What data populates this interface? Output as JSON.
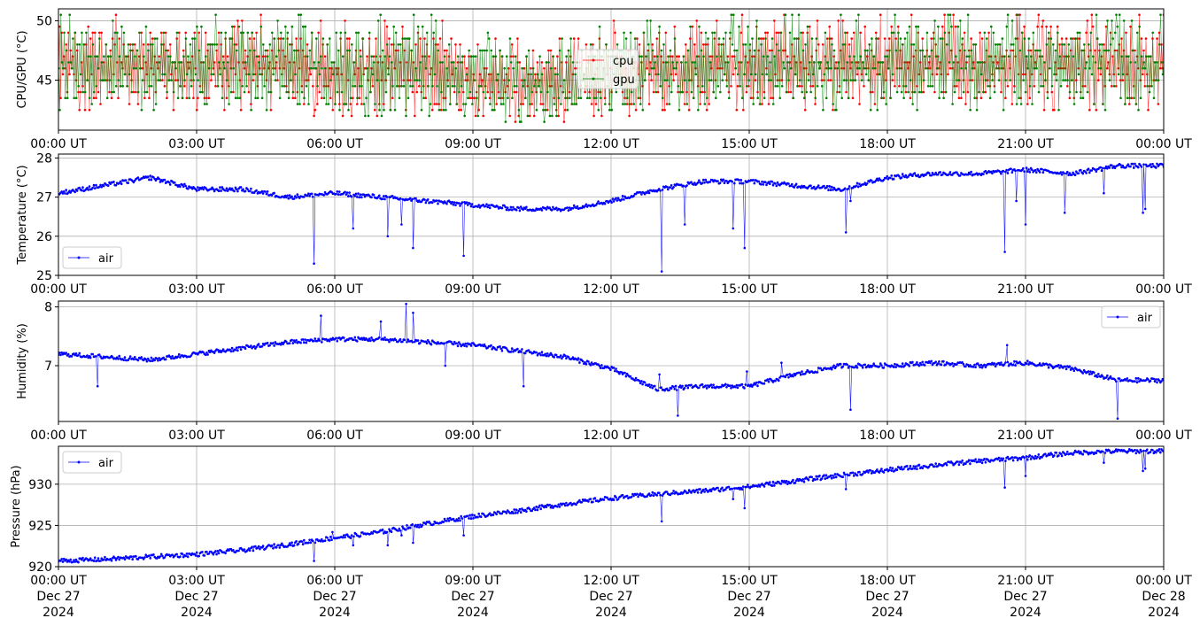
{
  "x_ticks": [
    "00:00 UT",
    "03:00 UT",
    "06:00 UT",
    "09:00 UT",
    "12:00 UT",
    "15:00 UT",
    "18:00 UT",
    "21:00 UT",
    "00:00 UT"
  ],
  "x_dates": [
    "Dec 27",
    "Dec 27",
    "Dec 27",
    "Dec 27",
    "Dec 27",
    "Dec 27",
    "Dec 27",
    "Dec 27",
    "Dec 28"
  ],
  "x_years": [
    "2024",
    "2024",
    "2024",
    "2024",
    "2024",
    "2024",
    "2024",
    "2024",
    "2024"
  ],
  "chart_data": [
    {
      "type": "line",
      "ylabel": "CPU/GPU (°C)",
      "x_range": [
        "2024-12-27 00:00",
        "2024-12-28 00:00"
      ],
      "ylim": [
        40.8,
        51.0
      ],
      "y_ticks": [
        45,
        50
      ],
      "grid": true,
      "legend_position": "center",
      "series": [
        {
          "name": "cpu",
          "color": "#ff0000",
          "x_hours": [
            0,
            1,
            2,
            3,
            4,
            5,
            6,
            7,
            8,
            9,
            10,
            11,
            12,
            13,
            14,
            15,
            16,
            17,
            18,
            19,
            20,
            21,
            22,
            23,
            24
          ],
          "y_low": [
            43,
            43,
            43,
            43,
            43,
            43,
            42.5,
            42.5,
            42.5,
            42.5,
            42,
            42,
            42.5,
            43,
            43,
            43,
            43,
            43,
            43,
            43,
            43,
            43,
            43,
            43,
            43
          ],
          "y_high": [
            49.5,
            49.5,
            49.5,
            49.5,
            49.5,
            49.5,
            49.5,
            49.5,
            49.5,
            48,
            47.5,
            47.5,
            49,
            49.5,
            49.5,
            49.5,
            49.5,
            49.5,
            49.5,
            49.5,
            49.5,
            49.5,
            49.5,
            49.5,
            49.5
          ]
        },
        {
          "name": "gpu",
          "color": "#008000",
          "x_hours": [
            0,
            1,
            2,
            3,
            4,
            5,
            6,
            7,
            8,
            9,
            10,
            11,
            12,
            13,
            14,
            15,
            16,
            17,
            18,
            19,
            20,
            21,
            22,
            23,
            24
          ],
          "y_low": [
            43,
            43,
            43,
            43,
            43,
            43,
            42.5,
            42.5,
            42.5,
            42.5,
            42,
            42,
            42.5,
            43,
            43,
            43,
            43,
            43,
            43,
            43,
            43,
            43,
            43,
            43,
            43
          ],
          "y_high": [
            49.5,
            49.5,
            49.5,
            49.5,
            49.5,
            49.5,
            49.5,
            49.5,
            49.5,
            48,
            47.5,
            47.5,
            49,
            49.5,
            49.5,
            49.5,
            49.5,
            49.5,
            49.5,
            49.5,
            49.5,
            49.5,
            49.5,
            49.5,
            49.5
          ]
        }
      ]
    },
    {
      "type": "line",
      "ylabel": "Temperature (°C)",
      "x_range": [
        "2024-12-27 00:00",
        "2024-12-28 00:00"
      ],
      "ylim": [
        25.0,
        28.1
      ],
      "y_ticks": [
        25,
        26,
        27,
        28
      ],
      "grid": true,
      "legend_position": "lower-left",
      "series": [
        {
          "name": "air",
          "color": "#0000ff",
          "x_hours": [
            0,
            1,
            2,
            3,
            4,
            5,
            6,
            7,
            8,
            9,
            10,
            11,
            12,
            13,
            14,
            15,
            16,
            17,
            18,
            19,
            20,
            21,
            22,
            23,
            24
          ],
          "y": [
            27.1,
            27.3,
            27.5,
            27.2,
            27.2,
            27.0,
            27.1,
            27.0,
            26.9,
            26.8,
            26.7,
            26.7,
            26.9,
            27.2,
            27.4,
            27.4,
            27.3,
            27.2,
            27.5,
            27.6,
            27.6,
            27.7,
            27.6,
            27.8,
            27.8
          ],
          "outliers": [
            [
              5.55,
              25.3
            ],
            [
              6.4,
              26.2
            ],
            [
              7.15,
              26.0
            ],
            [
              7.45,
              26.3
            ],
            [
              7.7,
              25.7
            ],
            [
              8.8,
              25.5
            ],
            [
              13.1,
              25.1
            ],
            [
              13.6,
              26.3
            ],
            [
              14.65,
              26.2
            ],
            [
              14.9,
              25.7
            ],
            [
              17.1,
              26.1
            ],
            [
              17.2,
              26.9
            ],
            [
              20.55,
              25.6
            ],
            [
              20.8,
              26.9
            ],
            [
              21.0,
              26.3
            ],
            [
              21.85,
              26.6
            ],
            [
              22.7,
              27.1
            ],
            [
              23.55,
              26.6
            ],
            [
              23.6,
              26.7
            ]
          ]
        }
      ]
    },
    {
      "type": "line",
      "ylabel": "Humidity (%)",
      "x_range": [
        "2024-12-27 00:00",
        "2024-12-28 00:00"
      ],
      "ylim": [
        6.05,
        8.1
      ],
      "y_ticks": [
        7,
        8
      ],
      "grid": true,
      "legend_position": "upper-right",
      "series": [
        {
          "name": "air",
          "color": "#0000ff",
          "x_hours": [
            0,
            1,
            2,
            3,
            4,
            5,
            6,
            7,
            8,
            9,
            10,
            11,
            12,
            13,
            14,
            15,
            16,
            17,
            18,
            19,
            20,
            21,
            22,
            23,
            24
          ],
          "y": [
            7.2,
            7.15,
            7.1,
            7.2,
            7.3,
            7.4,
            7.45,
            7.45,
            7.4,
            7.35,
            7.25,
            7.15,
            6.95,
            6.6,
            6.65,
            6.65,
            6.85,
            7.0,
            7.0,
            7.05,
            7.0,
            7.05,
            6.95,
            6.75,
            6.75
          ],
          "outliers": [
            [
              0.85,
              6.65
            ],
            [
              5.7,
              7.85
            ],
            [
              6.0,
              7.45
            ],
            [
              7.0,
              7.75
            ],
            [
              7.55,
              8.05
            ],
            [
              7.7,
              7.9
            ],
            [
              8.4,
              7.0
            ],
            [
              10.1,
              6.65
            ],
            [
              13.05,
              6.85
            ],
            [
              13.45,
              6.15
            ],
            [
              14.95,
              6.9
            ],
            [
              15.7,
              7.05
            ],
            [
              17.2,
              6.25
            ],
            [
              20.6,
              7.35
            ],
            [
              23.0,
              6.1
            ]
          ]
        }
      ]
    },
    {
      "type": "line",
      "ylabel": "Pressure (hPa)",
      "x_range": [
        "2024-12-27 00:00",
        "2024-12-28 00:00"
      ],
      "ylim": [
        920.0,
        934.6
      ],
      "y_ticks": [
        920,
        925,
        930
      ],
      "grid": true,
      "legend_position": "upper-left",
      "series": [
        {
          "name": "air",
          "color": "#0000ff",
          "x_hours": [
            0,
            1,
            2,
            3,
            4,
            5,
            6,
            7,
            8,
            9,
            10,
            11,
            12,
            13,
            14,
            15,
            16,
            17,
            18,
            19,
            20,
            21,
            22,
            23,
            24
          ],
          "y": [
            920.7,
            920.9,
            921.2,
            921.5,
            922.0,
            922.7,
            923.5,
            924.2,
            925.2,
            926.1,
            926.8,
            927.6,
            928.3,
            928.8,
            929.2,
            929.7,
            930.4,
            931.1,
            931.7,
            932.3,
            932.8,
            933.2,
            933.8,
            934.0,
            934.0
          ],
          "outliers": [
            [
              5.55,
              920.7
            ],
            [
              5.95,
              924.2
            ],
            [
              6.4,
              922.6
            ],
            [
              7.15,
              922.6
            ],
            [
              7.45,
              923.8
            ],
            [
              7.7,
              922.9
            ],
            [
              8.8,
              923.8
            ],
            [
              13.1,
              925.5
            ],
            [
              14.65,
              928.2
            ],
            [
              14.9,
              927.1
            ],
            [
              17.1,
              929.4
            ],
            [
              20.55,
              929.6
            ],
            [
              21.0,
              931.0
            ],
            [
              22.7,
              932.6
            ],
            [
              23.55,
              931.6
            ],
            [
              23.6,
              931.9
            ]
          ]
        }
      ]
    }
  ]
}
